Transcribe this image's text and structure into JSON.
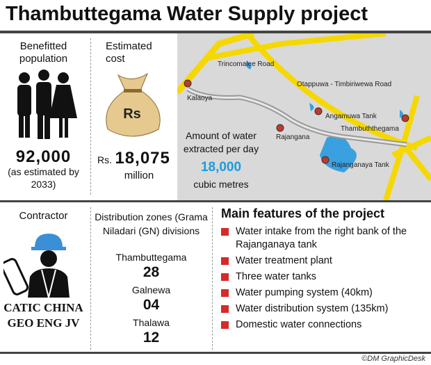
{
  "header": {
    "title": "Thambuttegama Water Supply project"
  },
  "population": {
    "label": "Benefitted population",
    "value": "92,000",
    "note": "(as estimated by 2033)"
  },
  "cost": {
    "label": "Estimated cost",
    "currency_icon": "Rs",
    "prefix": "Rs.",
    "value": "18,075",
    "unit": "million"
  },
  "map": {
    "roads": [
      "Trincomalee Road",
      "Otappuwa - Timbiriwewa Road"
    ],
    "places": [
      "Kalaoya",
      "Angamuwa Tank",
      "Rajangana",
      "Thambuththegama",
      "Rajanganaya Tank"
    ],
    "water_label": "Amount of water extracted per day",
    "water_value": "18,000",
    "water_unit": "cubic metres"
  },
  "contractor": {
    "label": "Contractor",
    "name": "CATIC CHINA GEO ENG JV"
  },
  "zones": {
    "label": "Distribution zones (Grama Niladari (GN) divisions",
    "items": [
      {
        "name": "Thambuttegama",
        "count": "28"
      },
      {
        "name": "Galnewa",
        "count": "04"
      },
      {
        "name": "Thalawa",
        "count": "12"
      }
    ]
  },
  "features": {
    "title": "Main features of the project",
    "items": [
      "Water intake from the right bank of the Rajanganaya tank",
      "Water treatment plant",
      "Three water tanks",
      "Water pumping system (40km)",
      "Water distribution system (135km)",
      "Domestic water connections"
    ]
  },
  "footer": {
    "credit": "©DM GraphicDesk"
  }
}
